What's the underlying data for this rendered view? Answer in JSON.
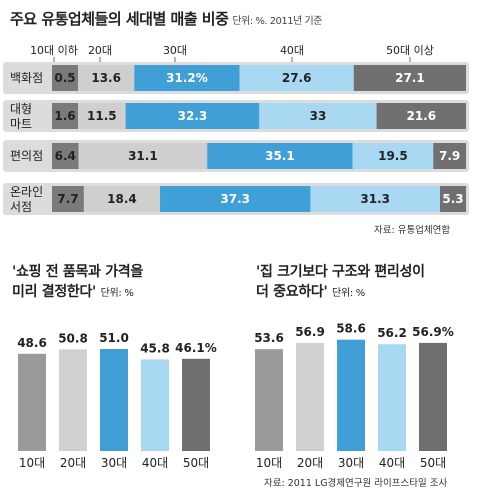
{
  "title": "주요 유통업체들의 세대별 매출 비중",
  "unit": "단위: %. 2011년 기준",
  "colors": {
    "g10": "#7a7a7a",
    "g20": "#cfcfcf",
    "g30": "#3f9fd6",
    "g40": "#a9d8f3",
    "g50": "#707070",
    "row_bg": "#dcdcdc"
  },
  "chart_data": [
    {
      "type": "bar",
      "stacked": "horizontal-100%",
      "series": [
        {
          "name": "10대 이하",
          "values": [
            0.5,
            1.6,
            6.4,
            7.7
          ]
        },
        {
          "name": "20대",
          "values": [
            13.6,
            11.5,
            31.1,
            18.4
          ]
        },
        {
          "name": "30대",
          "values": [
            31.2,
            32.3,
            35.1,
            37.3
          ]
        },
        {
          "name": "40대",
          "values": [
            27.6,
            33,
            19.5,
            31.3
          ]
        },
        {
          "name": "50대 이상",
          "values": [
            27.1,
            21.6,
            7.9,
            5.3
          ]
        }
      ],
      "categories": [
        "백화점",
        "대형 마트",
        "편의점",
        "온라인 서점"
      ],
      "labels": [
        [
          "0.5",
          "13.6",
          "31.2%",
          "27.6",
          "27.1"
        ],
        [
          "1.6",
          "11.5",
          "32.3",
          "33",
          "21.6"
        ],
        [
          "6.4",
          "31.1",
          "35.1",
          "19.5",
          "7.9"
        ],
        [
          "7.7",
          "18.4",
          "37.3",
          "31.3",
          "5.3"
        ]
      ],
      "source": "자료: 유통업체연합"
    },
    {
      "type": "bar",
      "title_line1": "'쇼핑 전 품목과 가격을",
      "title_line2": "미리 결정한다'",
      "unit": "단위: %",
      "categories": [
        "10대",
        "20대",
        "30대",
        "40대",
        "50대"
      ],
      "values": [
        48.6,
        50.8,
        51.0,
        45.8,
        46.1
      ],
      "labels": [
        "48.6",
        "50.8",
        "51.0",
        "45.8",
        "46.1%"
      ]
    },
    {
      "type": "bar",
      "title_line1": "'집 크기보다 구조와 편리성이",
      "title_line2": "더 중요하다'",
      "unit": "단위: %",
      "categories": [
        "10대",
        "20대",
        "30대",
        "40대",
        "50대"
      ],
      "values": [
        53.6,
        56.9,
        58.6,
        56.2,
        56.9
      ],
      "labels": [
        "53.6",
        "56.9",
        "58.6",
        "56.2",
        "56.9%"
      ],
      "source": "자료: 2011 LG경제연구원 라이프스타일 조사"
    }
  ]
}
